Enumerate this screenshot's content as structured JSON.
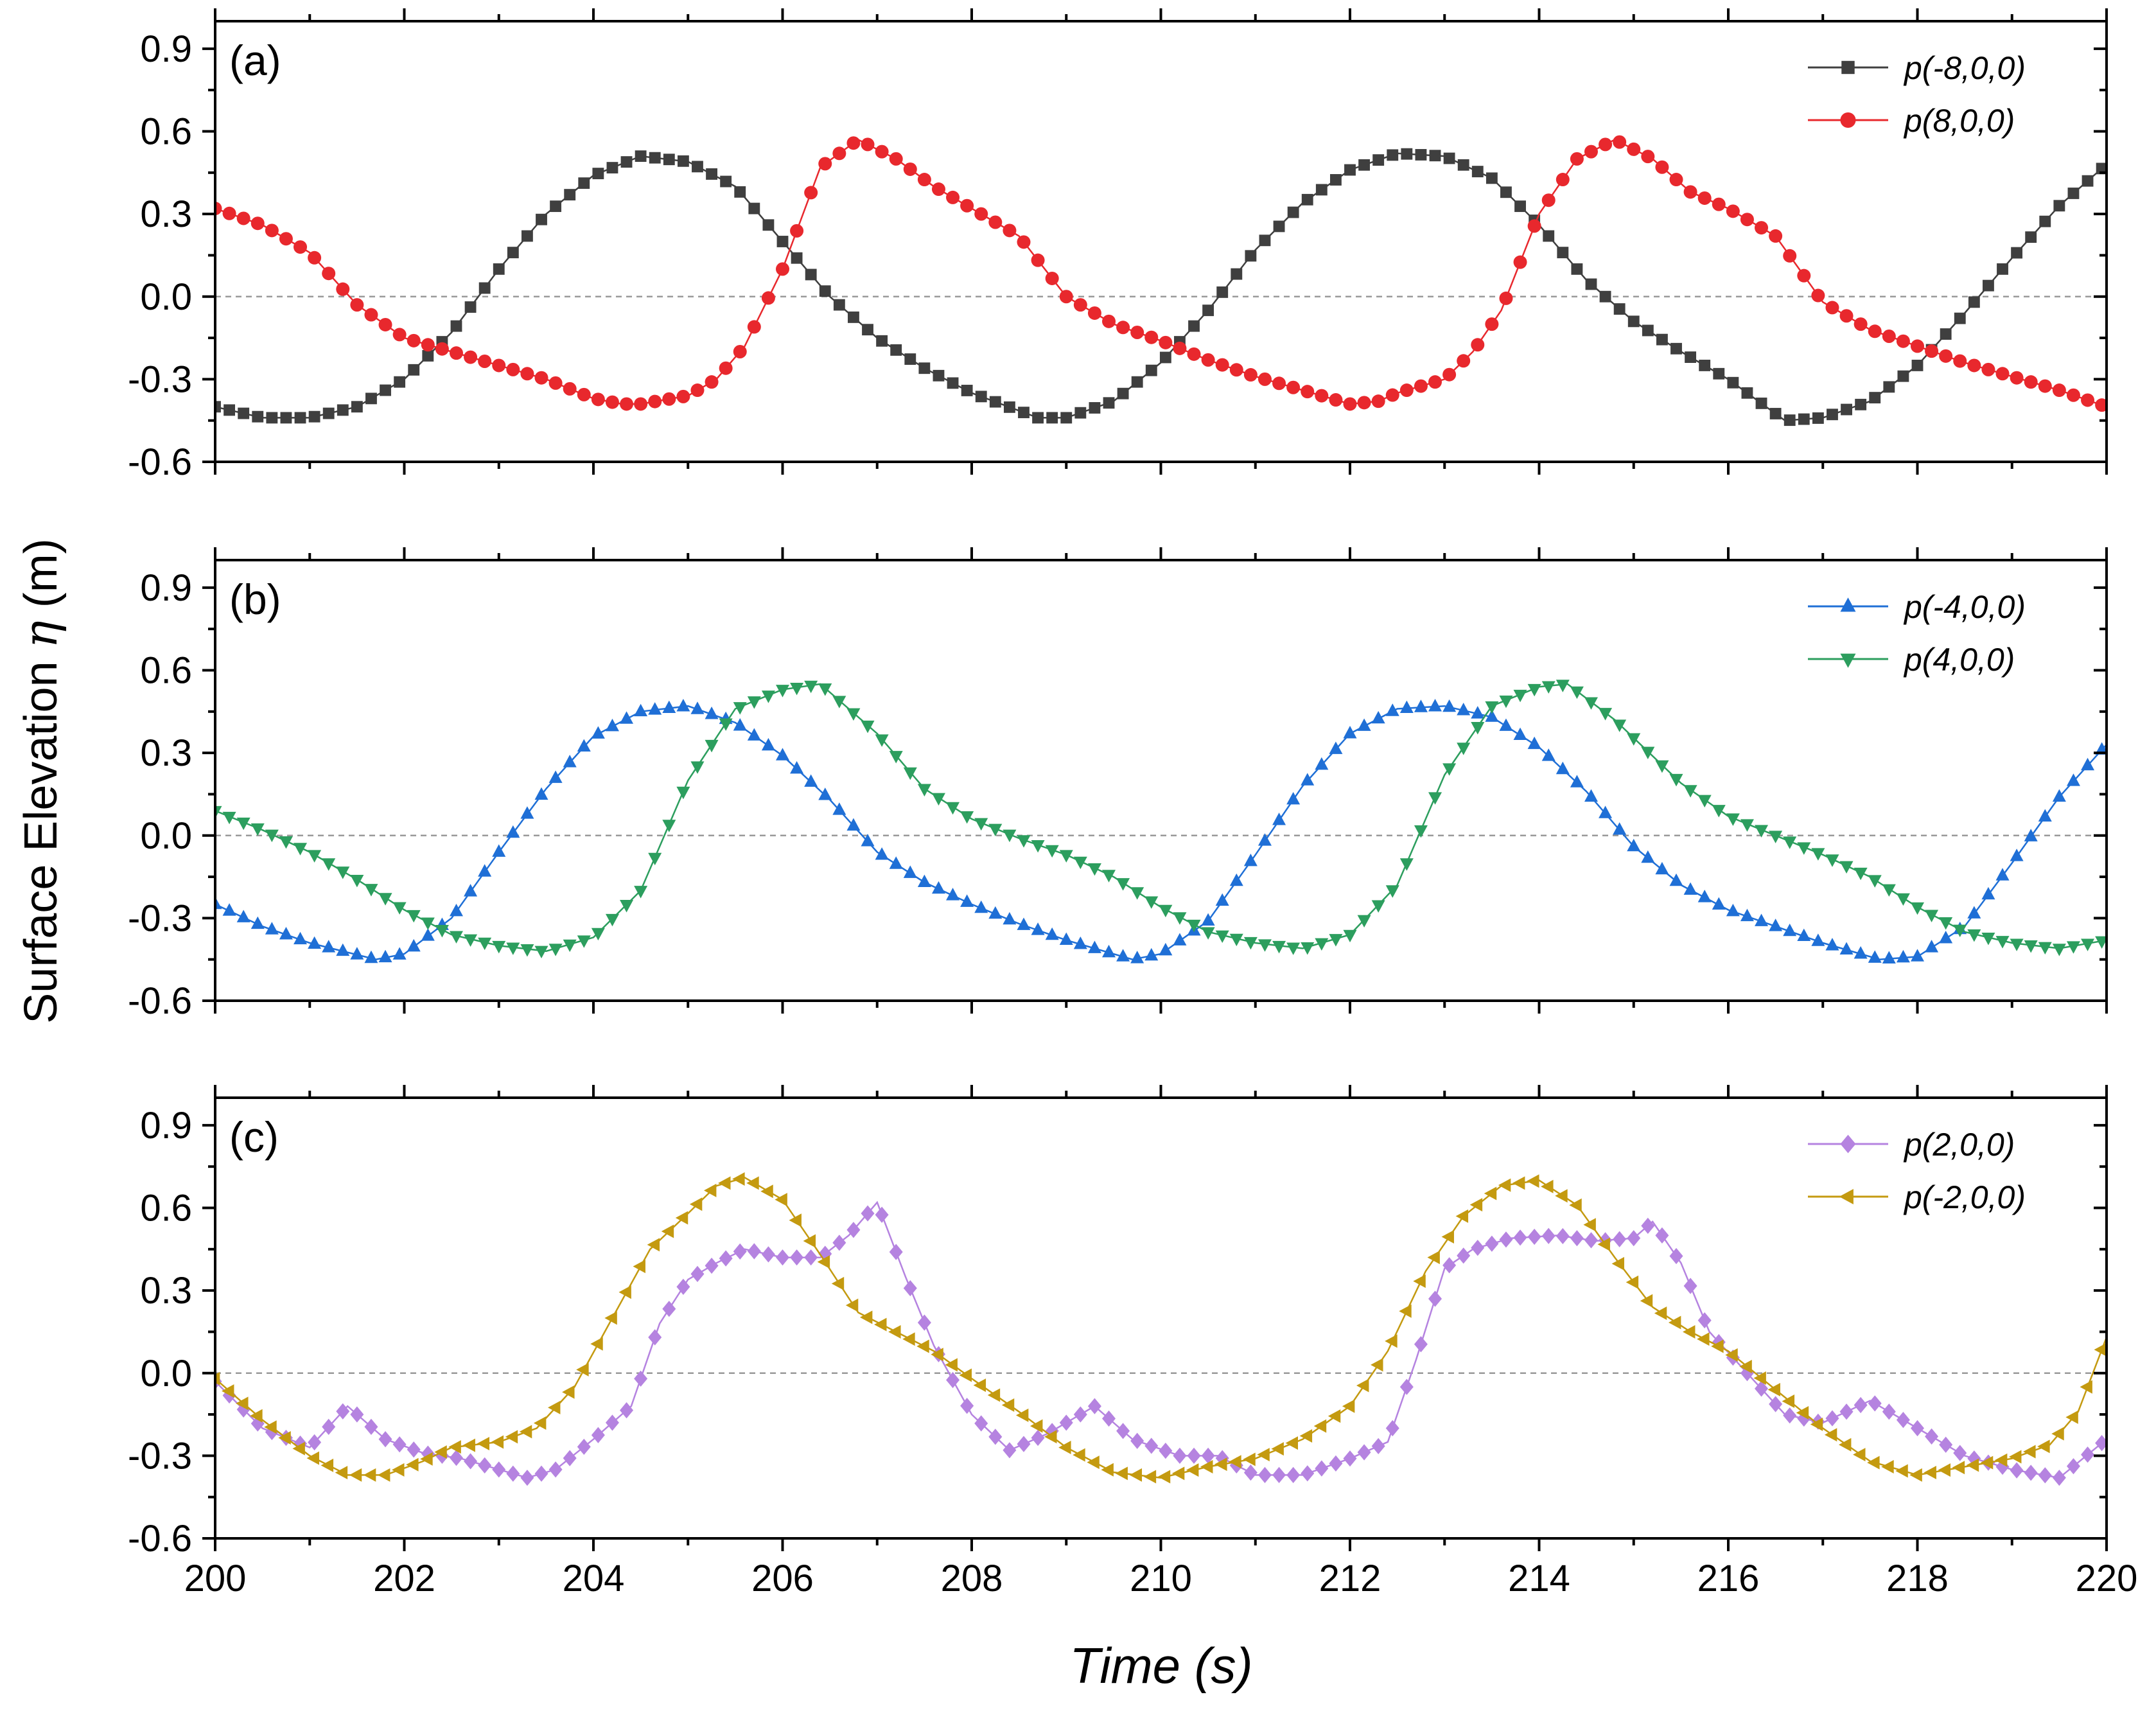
{
  "figure": {
    "ylabel_text": "Surface Elevation",
    "ylabel_symbol": "η",
    "ylabel_unit": "(m)",
    "xlabel": "Time (s)"
  },
  "chart_data": [
    {
      "type": "line",
      "panel_label": "(a)",
      "xlim": [
        200,
        220
      ],
      "ylim": [
        -0.6,
        1.0
      ],
      "xticks": [
        "200",
        "202",
        "204",
        "206",
        "208",
        "210",
        "212",
        "214",
        "216",
        "218",
        "220"
      ],
      "yticks": [
        "-0.6",
        "-0.3",
        "0.0",
        "0.3",
        "0.6",
        "0.9"
      ],
      "show_xtick_labels": false,
      "zero_line": true,
      "legend_position": "top-right",
      "series": [
        {
          "name": "p(-8,0,0)",
          "color": "#3f3f3f",
          "marker": "square",
          "x": [
            200.0,
            200.5,
            201.0,
            201.5,
            202.0,
            202.5,
            203.0,
            203.5,
            204.0,
            204.5,
            205.0,
            205.5,
            206.0,
            206.5,
            207.0,
            207.5,
            208.0,
            208.7,
            209.0,
            209.5,
            210.0,
            210.5,
            211.0,
            211.5,
            212.0,
            212.5,
            213.0,
            213.5,
            214.0,
            214.5,
            215.0,
            215.5,
            216.0,
            216.6,
            217.0,
            217.5,
            218.0,
            218.5,
            219.0,
            219.5,
            220.0
          ],
          "values": [
            -0.4,
            -0.44,
            -0.44,
            -0.4,
            -0.3,
            -0.13,
            0.1,
            0.3,
            0.44,
            0.51,
            0.49,
            0.4,
            0.2,
            -0.0,
            -0.15,
            -0.26,
            -0.35,
            -0.44,
            -0.44,
            -0.38,
            -0.24,
            -0.05,
            0.17,
            0.34,
            0.46,
            0.52,
            0.51,
            0.43,
            0.26,
            0.06,
            -0.09,
            -0.2,
            -0.3,
            -0.45,
            -0.44,
            -0.38,
            -0.25,
            -0.06,
            0.14,
            0.33,
            0.48
          ]
        },
        {
          "name": "p(8,0,0)",
          "color": "#e8282d",
          "marker": "circle",
          "x": [
            200.0,
            200.5,
            201.0,
            201.5,
            202.0,
            202.5,
            203.0,
            203.5,
            204.0,
            204.3,
            204.5,
            205.0,
            205.3,
            205.6,
            206.0,
            206.4,
            206.8,
            207.2,
            207.6,
            208.0,
            208.5,
            209.0,
            209.5,
            210.0,
            210.5,
            211.0,
            211.5,
            212.0,
            212.3,
            212.5,
            213.0,
            213.3,
            213.6,
            214.0,
            214.4,
            214.8,
            215.2,
            215.6,
            216.0,
            216.5,
            217.0,
            217.5,
            218.0,
            218.5,
            219.0,
            219.5,
            220.0
          ],
          "values": [
            0.32,
            0.26,
            0.16,
            -0.03,
            -0.15,
            -0.2,
            -0.25,
            -0.3,
            -0.37,
            -0.39,
            -0.39,
            -0.36,
            -0.3,
            -0.18,
            0.1,
            0.47,
            0.57,
            0.5,
            0.4,
            0.32,
            0.22,
            -0.0,
            -0.1,
            -0.16,
            -0.23,
            -0.29,
            -0.34,
            -0.39,
            -0.38,
            -0.35,
            -0.3,
            -0.2,
            -0.05,
            0.3,
            0.5,
            0.57,
            0.5,
            0.38,
            0.32,
            0.22,
            -0.02,
            -0.12,
            -0.18,
            -0.24,
            -0.29,
            -0.34,
            -0.4
          ]
        }
      ]
    },
    {
      "type": "line",
      "panel_label": "(b)",
      "xlim": [
        200,
        220
      ],
      "ylim": [
        -0.6,
        1.0
      ],
      "xticks": [
        "200",
        "202",
        "204",
        "206",
        "208",
        "210",
        "212",
        "214",
        "216",
        "218",
        "220"
      ],
      "yticks": [
        "-0.6",
        "-0.3",
        "0.0",
        "0.3",
        "0.6",
        "0.9"
      ],
      "show_xtick_labels": false,
      "zero_line": true,
      "legend_position": "top-right",
      "series": [
        {
          "name": "p(-4,0,0)",
          "color": "#1f6fd6",
          "marker": "triangle-up",
          "x": [
            200.0,
            200.5,
            201.0,
            201.7,
            202.0,
            202.5,
            203.0,
            203.5,
            204.0,
            204.5,
            205.0,
            205.5,
            206.0,
            206.5,
            207.0,
            207.5,
            208.0,
            208.5,
            209.0,
            209.7,
            210.0,
            210.5,
            211.0,
            211.5,
            212.0,
            212.5,
            213.0,
            213.5,
            214.0,
            214.5,
            215.0,
            215.5,
            216.0,
            216.5,
            217.0,
            217.6,
            218.0,
            218.5,
            219.0,
            219.5,
            220.0
          ],
          "values": [
            -0.25,
            -0.33,
            -0.39,
            -0.45,
            -0.43,
            -0.3,
            -0.06,
            0.17,
            0.36,
            0.45,
            0.47,
            0.41,
            0.29,
            0.13,
            -0.06,
            -0.17,
            -0.25,
            -0.32,
            -0.38,
            -0.45,
            -0.43,
            -0.31,
            -0.07,
            0.18,
            0.37,
            0.46,
            0.47,
            0.43,
            0.32,
            0.16,
            -0.04,
            -0.18,
            -0.27,
            -0.33,
            -0.39,
            -0.45,
            -0.44,
            -0.33,
            -0.1,
            0.14,
            0.33
          ]
        },
        {
          "name": "p(4,0,0)",
          "color": "#2c9e5e",
          "marker": "triangle-down",
          "x": [
            200.0,
            200.5,
            201.0,
            201.5,
            202.0,
            202.5,
            203.0,
            203.5,
            204.0,
            204.5,
            205.0,
            205.5,
            206.0,
            206.4,
            207.0,
            207.5,
            208.0,
            208.5,
            209.0,
            209.5,
            210.0,
            210.5,
            211.0,
            211.5,
            212.0,
            212.5,
            213.0,
            213.5,
            214.0,
            214.3,
            214.8,
            215.5,
            216.0,
            216.5,
            217.0,
            217.5,
            218.0,
            218.5,
            219.0,
            219.5,
            220.0
          ],
          "values": [
            0.09,
            0.02,
            -0.06,
            -0.16,
            -0.27,
            -0.36,
            -0.4,
            -0.42,
            -0.37,
            -0.2,
            0.2,
            0.46,
            0.53,
            0.55,
            0.37,
            0.17,
            0.06,
            -0.01,
            -0.07,
            -0.15,
            -0.26,
            -0.35,
            -0.39,
            -0.41,
            -0.36,
            -0.18,
            0.22,
            0.47,
            0.54,
            0.55,
            0.42,
            0.19,
            0.07,
            0.0,
            -0.07,
            -0.15,
            -0.26,
            -0.35,
            -0.39,
            -0.41,
            -0.38
          ]
        }
      ]
    },
    {
      "type": "line",
      "panel_label": "(c)",
      "xlim": [
        200,
        220
      ],
      "ylim": [
        -0.6,
        1.0
      ],
      "xticks": [
        "200",
        "202",
        "204",
        "206",
        "208",
        "210",
        "212",
        "214",
        "216",
        "218",
        "220"
      ],
      "yticks": [
        "-0.6",
        "-0.3",
        "0.0",
        "0.3",
        "0.6",
        "0.9"
      ],
      "show_xtick_labels": true,
      "zero_line": true,
      "legend_position": "top-right",
      "series": [
        {
          "name": "p(2,0,0)",
          "color": "#b583e0",
          "marker": "diamond",
          "x": [
            200.0,
            200.5,
            201.0,
            201.4,
            201.8,
            202.2,
            202.6,
            203.0,
            203.3,
            203.6,
            204.0,
            204.4,
            204.7,
            205.0,
            205.3,
            205.6,
            206.0,
            206.4,
            206.7,
            207.0,
            207.3,
            207.6,
            208.0,
            208.4,
            208.8,
            209.3,
            209.7,
            210.2,
            210.6,
            211.0,
            211.5,
            212.0,
            212.4,
            212.7,
            213.0,
            213.3,
            213.7,
            214.2,
            214.6,
            215.0,
            215.2,
            215.5,
            215.8,
            216.2,
            216.6,
            217.0,
            217.5,
            218.0,
            218.5,
            219.0,
            219.5,
            220.0
          ],
          "values": [
            -0.03,
            -0.2,
            -0.27,
            -0.12,
            -0.24,
            -0.29,
            -0.31,
            -0.35,
            -0.38,
            -0.35,
            -0.24,
            -0.12,
            0.18,
            0.34,
            0.4,
            0.45,
            0.42,
            0.42,
            0.5,
            0.62,
            0.35,
            0.1,
            -0.15,
            -0.28,
            -0.22,
            -0.12,
            -0.24,
            -0.3,
            -0.3,
            -0.37,
            -0.37,
            -0.31,
            -0.25,
            0.05,
            0.38,
            0.45,
            0.49,
            0.5,
            0.48,
            0.49,
            0.55,
            0.4,
            0.15,
            0.0,
            -0.15,
            -0.18,
            -0.1,
            -0.2,
            -0.3,
            -0.35,
            -0.38,
            -0.24
          ]
        },
        {
          "name": "p(-2,0,0)",
          "color": "#c49a10",
          "marker": "triangle-left",
          "x": [
            200.0,
            200.5,
            201.0,
            201.4,
            201.8,
            202.2,
            202.5,
            203.0,
            203.4,
            203.8,
            204.2,
            204.6,
            205.0,
            205.3,
            205.6,
            206.0,
            206.4,
            206.8,
            207.2,
            207.6,
            208.0,
            208.5,
            209.0,
            209.5,
            210.0,
            210.5,
            211.0,
            211.5,
            212.0,
            212.4,
            212.8,
            213.2,
            213.6,
            214.0,
            214.4,
            214.8,
            215.2,
            215.6,
            216.0,
            216.5,
            217.0,
            217.5,
            218.0,
            218.5,
            219.0,
            219.4,
            219.7,
            220.0
          ],
          "values": [
            -0.02,
            -0.17,
            -0.3,
            -0.37,
            -0.37,
            -0.32,
            -0.27,
            -0.25,
            -0.2,
            -0.05,
            0.2,
            0.45,
            0.58,
            0.68,
            0.71,
            0.63,
            0.43,
            0.22,
            0.15,
            0.08,
            -0.02,
            -0.14,
            -0.27,
            -0.36,
            -0.38,
            -0.34,
            -0.31,
            -0.24,
            -0.12,
            0.08,
            0.37,
            0.57,
            0.68,
            0.7,
            0.61,
            0.42,
            0.24,
            0.15,
            0.08,
            -0.06,
            -0.2,
            -0.32,
            -0.37,
            -0.34,
            -0.31,
            -0.26,
            -0.14,
            0.13
          ]
        }
      ]
    }
  ]
}
